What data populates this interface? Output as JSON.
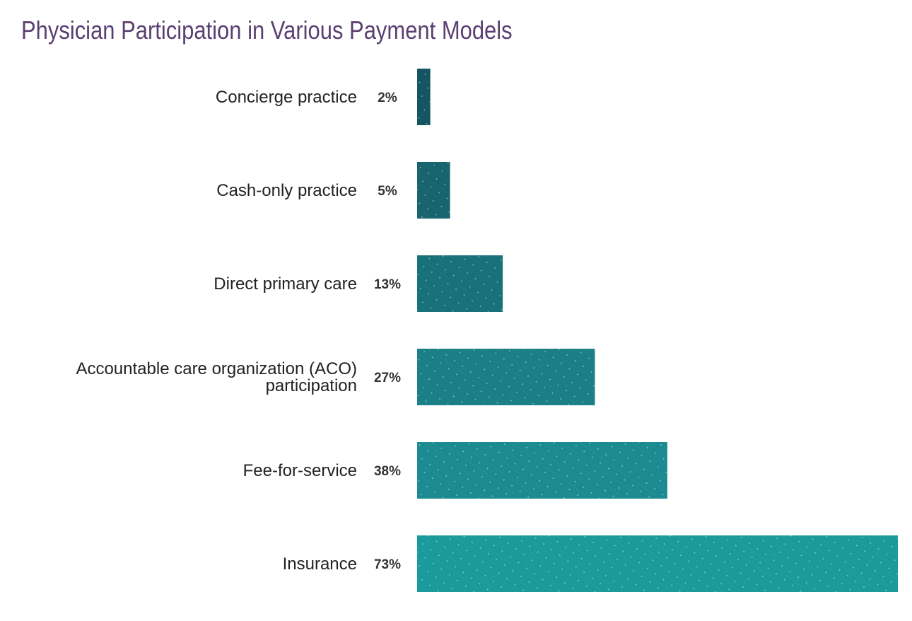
{
  "chart_data": {
    "type": "bar",
    "orientation": "horizontal",
    "title": "Physician Participation in Various Payment Models",
    "categories": [
      [
        "Concierge practice"
      ],
      [
        "Cash-only practice"
      ],
      [
        "Direct primary care"
      ],
      [
        "Accountable care organization (ACO)",
        "participation"
      ],
      [
        "Fee-for-service"
      ],
      [
        "Insurance"
      ]
    ],
    "values": [
      2,
      5,
      13,
      27,
      38,
      73
    ],
    "value_labels": [
      "2%",
      "5%",
      "13%",
      "27%",
      "38%",
      "73%"
    ],
    "colors": [
      "#135560",
      "#17646e",
      "#18707a",
      "#1a7f86",
      "#1b8b91",
      "#1a9a9b"
    ],
    "xlim": [
      0,
      73
    ],
    "grid": false,
    "pattern": "diagonal dotted hatch"
  }
}
